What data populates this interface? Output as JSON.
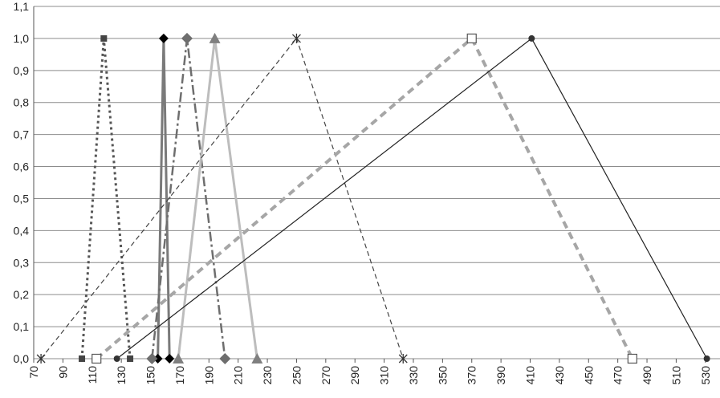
{
  "chart_data": {
    "type": "line",
    "xlim": [
      70,
      540
    ],
    "ylim": [
      0,
      1.1
    ],
    "xticks": [
      70,
      90,
      110,
      130,
      150,
      170,
      190,
      210,
      230,
      250,
      270,
      290,
      310,
      330,
      350,
      370,
      390,
      410,
      430,
      450,
      470,
      490,
      510,
      530
    ],
    "yticks": [
      {
        "value": 0,
        "label": "0,0"
      },
      {
        "value": 0.1,
        "label": "0,1"
      },
      {
        "value": 0.2,
        "label": "0,2"
      },
      {
        "value": 0.3,
        "label": "0,3"
      },
      {
        "value": 0.4,
        "label": "0,4"
      },
      {
        "value": 0.5,
        "label": "0,5"
      },
      {
        "value": 0.6,
        "label": "0,6"
      },
      {
        "value": 0.7,
        "label": "0,7"
      },
      {
        "value": 0.8,
        "label": "0,8"
      },
      {
        "value": 0.9,
        "label": "0,9"
      },
      {
        "value": 1.0,
        "label": "1,0"
      },
      {
        "value": 1.1,
        "label": "1,1"
      }
    ],
    "grid": true,
    "series": [
      {
        "color": "#555555",
        "dash": "3,4",
        "width": 3,
        "marker": "square",
        "x": [
          103,
          118,
          136
        ],
        "values": [
          0,
          1,
          0
        ]
      },
      {
        "color": "#7a7a7a",
        "dash": "",
        "width": 3,
        "marker": "diamond-black",
        "x": [
          155,
          159,
          163
        ],
        "values": [
          0,
          1,
          0
        ]
      },
      {
        "color": "#6e6e6e",
        "dash": "12,4,3,4",
        "width": 2.5,
        "marker": "diamond",
        "x": [
          151,
          175,
          201
        ],
        "values": [
          0,
          1,
          0
        ]
      },
      {
        "color": "#bdbdbd",
        "dash": "",
        "width": 3,
        "marker": "triangle",
        "x": [
          169,
          194,
          223
        ],
        "values": [
          0,
          1,
          0
        ]
      },
      {
        "color": "#444444",
        "dash": "6,4",
        "width": 1.2,
        "marker": "asterisk",
        "x": [
          75,
          250,
          323
        ],
        "values": [
          0,
          1,
          0
        ]
      },
      {
        "color": "#a6a6a6",
        "dash": "9,6",
        "width": 4,
        "marker": "open-square",
        "x": [
          113,
          370,
          480
        ],
        "values": [
          0,
          1,
          0
        ]
      },
      {
        "color": "#222222",
        "dash": "",
        "width": 1.2,
        "marker": "circle",
        "x": [
          127,
          411,
          531
        ],
        "values": [
          0,
          1,
          0
        ]
      }
    ]
  }
}
